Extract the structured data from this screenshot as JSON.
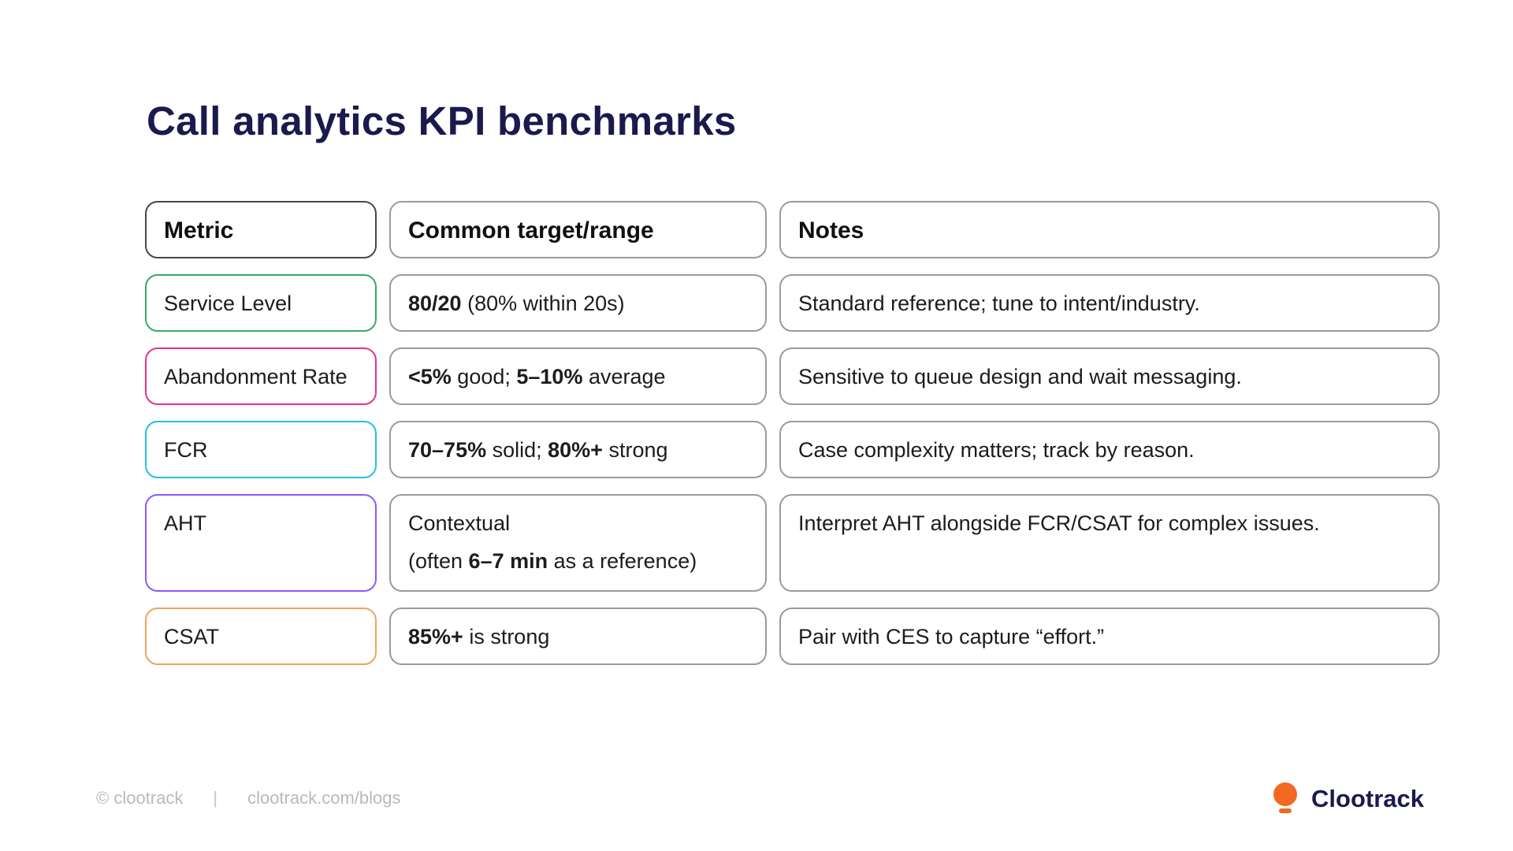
{
  "title": "Call analytics KPI benchmarks",
  "colors": {
    "title_navy": "#1b1a4e",
    "default_border": "#9b9b9b",
    "header_metric_border": "#474747",
    "service_level_green": "#3aa867",
    "abandonment_pink": "#e93286",
    "fcr_cyan": "#25bee8",
    "aht_purple": "#8a5cf0",
    "csat_orange": "#f1a35c",
    "logo_orange": "#f26a22",
    "footer_gray": "#b9b9bd"
  },
  "table": {
    "headers": [
      {
        "label": "Metric"
      },
      {
        "label": "Common target/range"
      },
      {
        "label": "Notes"
      }
    ],
    "rows": [
      {
        "metric": "Service Level",
        "metric_border": "#3aa867",
        "tall": false,
        "target_lines": [
          [
            {
              "t": "80/20",
              "b": 1
            },
            {
              "t": " (80% within 20s)",
              "b": 0
            }
          ]
        ],
        "notes": "Standard reference; tune to intent/industry."
      },
      {
        "metric": "Abandonment Rate",
        "metric_border": "#e93286",
        "tall": false,
        "target_lines": [
          [
            {
              "t": "<5%",
              "b": 1
            },
            {
              "t": " good; ",
              "b": 0
            },
            {
              "t": "5–10%",
              "b": 1
            },
            {
              "t": " average",
              "b": 0
            }
          ]
        ],
        "notes": "Sensitive to queue design and wait messaging."
      },
      {
        "metric": "FCR",
        "metric_border": "#25bee8",
        "tall": false,
        "target_lines": [
          [
            {
              "t": "70–75%",
              "b": 1
            },
            {
              "t": " solid; ",
              "b": 0
            },
            {
              "t": "80%+",
              "b": 1
            },
            {
              "t": " strong",
              "b": 0
            }
          ]
        ],
        "notes": "Case complexity matters; track by reason."
      },
      {
        "metric": "AHT",
        "metric_border": "#8a5cf0",
        "tall": true,
        "target_lines": [
          [
            {
              "t": "Contextual",
              "b": 0
            }
          ],
          [
            {
              "t": "(often ",
              "b": 0
            },
            {
              "t": "6–7 min",
              "b": 1
            },
            {
              "t": " as a reference)",
              "b": 0
            }
          ]
        ],
        "notes": "Interpret AHT alongside FCR/CSAT for complex issues."
      },
      {
        "metric": "CSAT",
        "metric_border": "#f1a35c",
        "tall": false,
        "target_lines": [
          [
            {
              "t": "85%+",
              "b": 1
            },
            {
              "t": " is strong",
              "b": 0
            }
          ]
        ],
        "notes": "Pair with CES to capture “effort.”"
      }
    ]
  },
  "footer": {
    "copyright": "© clootrack",
    "separator": "|",
    "url": "clootrack.com/blogs",
    "brand": "Clootrack"
  },
  "chart_data": {
    "type": "table",
    "title": "Call analytics KPI benchmarks",
    "columns": [
      "Metric",
      "Common target/range",
      "Notes"
    ],
    "rows": [
      [
        "Service Level",
        "80/20 (80% within 20s)",
        "Standard reference; tune to intent/industry."
      ],
      [
        "Abandonment Rate",
        "<5% good; 5–10% average",
        "Sensitive to queue design and wait messaging."
      ],
      [
        "FCR",
        "70–75% solid; 80%+ strong",
        "Case complexity matters; track by reason."
      ],
      [
        "AHT",
        "Contextual (often 6–7 min as a reference)",
        "Interpret AHT alongside FCR/CSAT for complex issues."
      ],
      [
        "CSAT",
        "85%+ is strong",
        "Pair with CES to capture “effort.”"
      ]
    ]
  }
}
